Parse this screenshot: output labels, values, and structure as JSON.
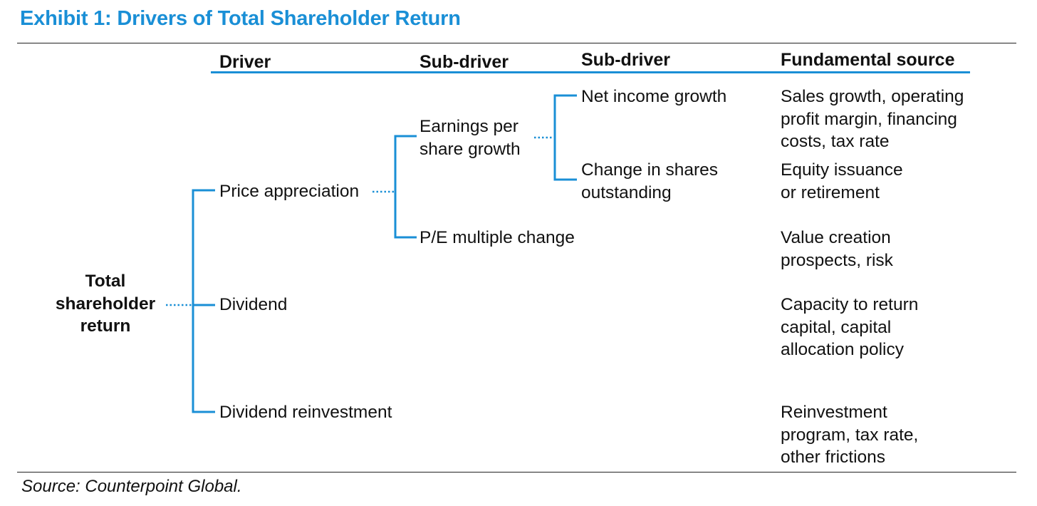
{
  "title": "Exhibit 1: Drivers of Total Shareholder Return",
  "headers": {
    "driver": "Driver",
    "sub_driver_1": "Sub-driver",
    "sub_driver_2": "Sub-driver",
    "fundamental_source": "Fundamental source"
  },
  "nodes": {
    "root": [
      "Total",
      "shareholder",
      "return"
    ],
    "price_appreciation": "Price appreciation",
    "dividend": "Dividend",
    "dividend_reinvestment": "Dividend reinvestment",
    "eps_growth": [
      "Earnings per",
      "share growth"
    ],
    "pe_change": "P/E multiple change",
    "net_income_growth": "Net income growth",
    "shares_change": [
      "Change in shares",
      "outstanding"
    ]
  },
  "sources": {
    "net_income_growth": [
      "Sales growth, operating",
      "profit margin, financing",
      "costs, tax rate"
    ],
    "shares_change": [
      "Equity issuance",
      "or retirement"
    ],
    "pe_change": [
      "Value creation",
      "prospects, risk"
    ],
    "dividend": [
      "Capacity to return",
      "capital, capital",
      "allocation policy"
    ],
    "dividend_reinvestment": [
      "Reinvestment",
      "program, tax rate,",
      "other frictions"
    ]
  },
  "source_note": "Source: Counterpoint Global.",
  "colors": {
    "accent": "#1a8fd6",
    "text": "#111111",
    "rule": "#222222"
  }
}
